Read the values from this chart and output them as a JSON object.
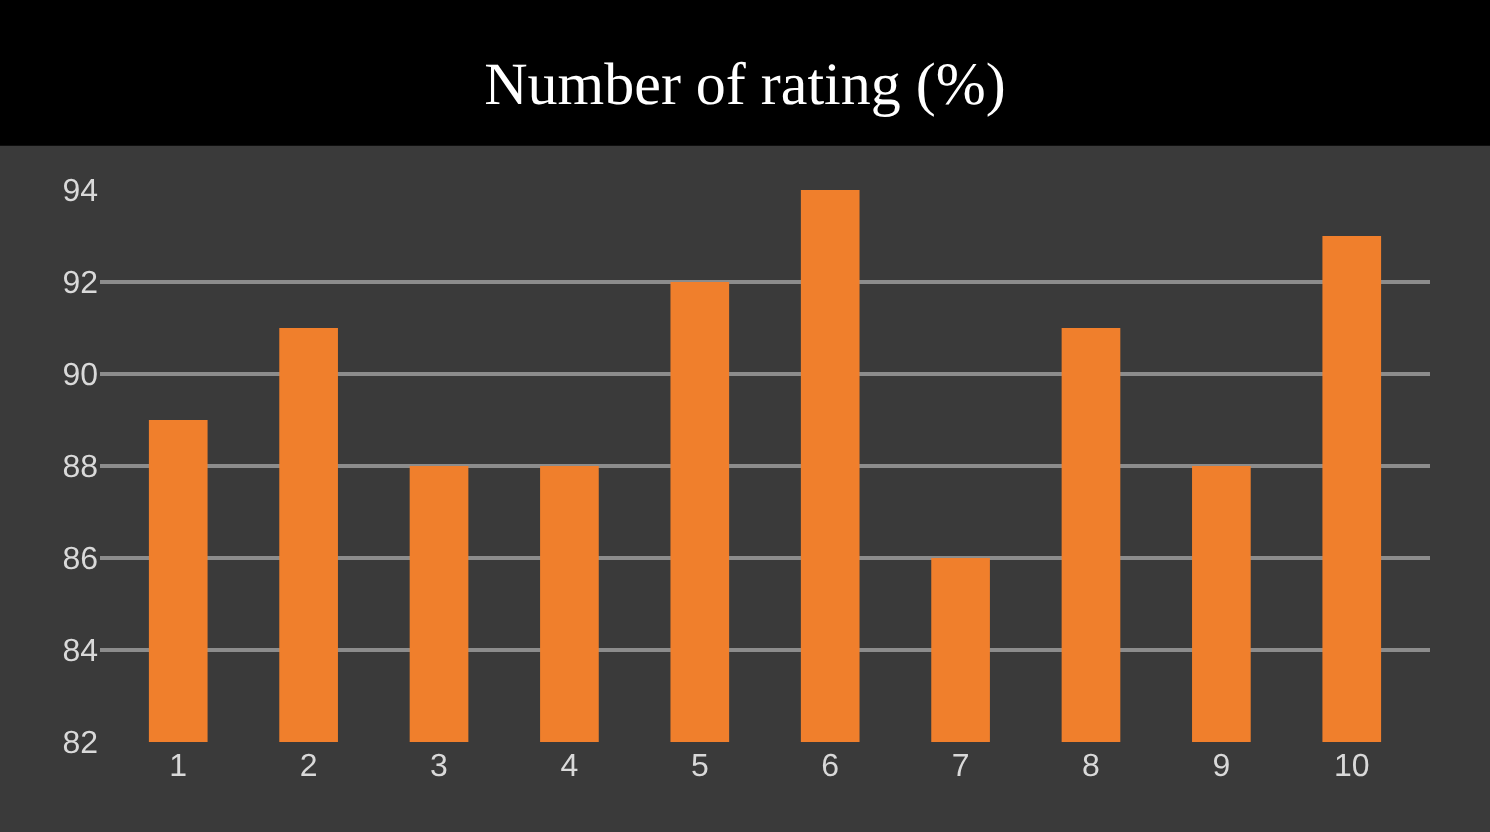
{
  "chart_data": {
    "type": "bar",
    "title": "Number of rating (%)",
    "categories": [
      "1",
      "2",
      "3",
      "4",
      "5",
      "6",
      "7",
      "8",
      "9",
      "10"
    ],
    "values": [
      89,
      91,
      88,
      88,
      92,
      94,
      86,
      91,
      88,
      93
    ],
    "color": "#f07f2c",
    "ylim": [
      82,
      94
    ],
    "yticks": [
      82,
      84,
      86,
      88,
      90,
      92,
      94
    ],
    "grid": "y"
  }
}
